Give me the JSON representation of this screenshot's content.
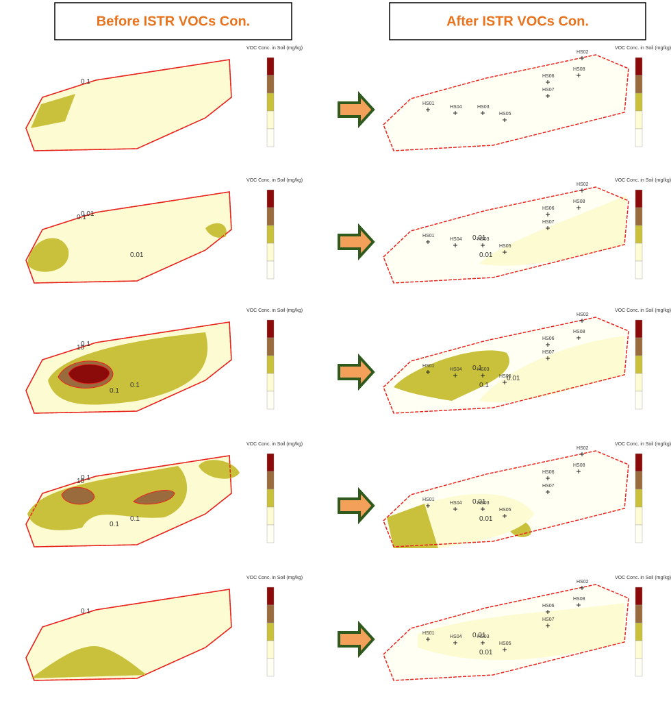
{
  "header": {
    "before": "Before ISTR VOCs Con.",
    "after": "After ISTR VOCs Con."
  },
  "legend_title": "VOC Conc. in Soil (mg/kg)",
  "rows": [
    {
      "before": {
        "contour_labels": [
          "0.1"
        ]
      },
      "after": {
        "wells": [
          "HS01",
          "HS04",
          "HS03",
          "HS05",
          "HS07",
          "HS06",
          "HS08",
          "HS02"
        ],
        "contour_labels": []
      }
    },
    {
      "before": {
        "contour_labels": [
          "0.01",
          "0.1",
          "0.01"
        ]
      },
      "after": {
        "wells": [
          "HS01",
          "HS04",
          "HS03",
          "HS05",
          "HS07",
          "HS06",
          "HS08",
          "HS02"
        ],
        "contour_labels": [
          "0.01",
          "0.01"
        ]
      }
    },
    {
      "before": {
        "contour_labels": [
          "0.1",
          "10",
          "0.1",
          "0.1"
        ]
      },
      "after": {
        "wells": [
          "HS01",
          "HS04",
          "HS03",
          "HS05",
          "HS07",
          "HS06",
          "HS08",
          "HS02"
        ],
        "contour_labels": [
          "0.1",
          "0.1",
          "0.01"
        ]
      }
    },
    {
      "before": {
        "contour_labels": [
          "0.1",
          "10",
          "0.1",
          "0.1"
        ]
      },
      "after": {
        "wells": [
          "HS01",
          "HS04",
          "HS03",
          "HS05",
          "HS07",
          "HS06",
          "HS08",
          "HS02"
        ],
        "contour_labels": [
          "0.01",
          "0.01"
        ]
      }
    },
    {
      "before": {
        "contour_labels": [
          "0.1"
        ]
      },
      "after": {
        "wells": [
          "HS01",
          "HS04",
          "HS03",
          "HS05",
          "HS07",
          "HS06",
          "HS08",
          "HS02"
        ],
        "contour_labels": [
          "0.01",
          "0.01"
        ]
      }
    }
  ]
}
